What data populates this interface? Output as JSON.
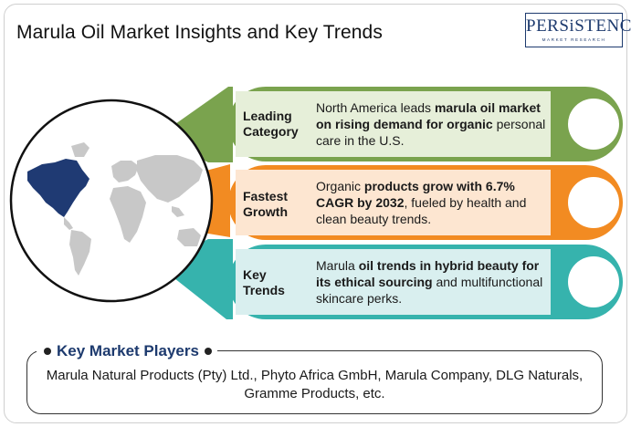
{
  "title": "Marula Oil Market Insights and Key Trends",
  "logo": {
    "name": "PERSiSTENCE",
    "tagline": "MARKET RESEARCH"
  },
  "colors": {
    "leading": "#7aa34e",
    "fastest": "#f28b22",
    "trends": "#36b3ad",
    "map_land": "#c8c8c8",
    "map_highlight": "#1f3a73",
    "heading_blue": "#1d3a6e"
  },
  "categories": [
    {
      "label_line1": "Leading",
      "label_line2": "Category",
      "text_a": "North America leads ",
      "text_b": "marula oil market on rising demand for organic",
      "text_c": " personal care in the U.S."
    },
    {
      "label_line1": "Fastest",
      "label_line2": "Growth",
      "text_a": "Organic ",
      "text_b": "products grow with 6.7% CAGR by 2032",
      "text_c": ", fueled by health and clean beauty trends."
    },
    {
      "label_line1": "Key",
      "label_line2": "Trends",
      "text_a": "Marula ",
      "text_b": "oil trends in hybrid beauty for its ethical sourcing",
      "text_c": " and multifunctional skincare perks."
    }
  ],
  "players": {
    "heading": "Key Market Players",
    "text": "Marula Natural Products (Pty) Ltd., Phyto Africa GmbH, Marula Company, DLG Naturals, Gramme Products, etc."
  }
}
